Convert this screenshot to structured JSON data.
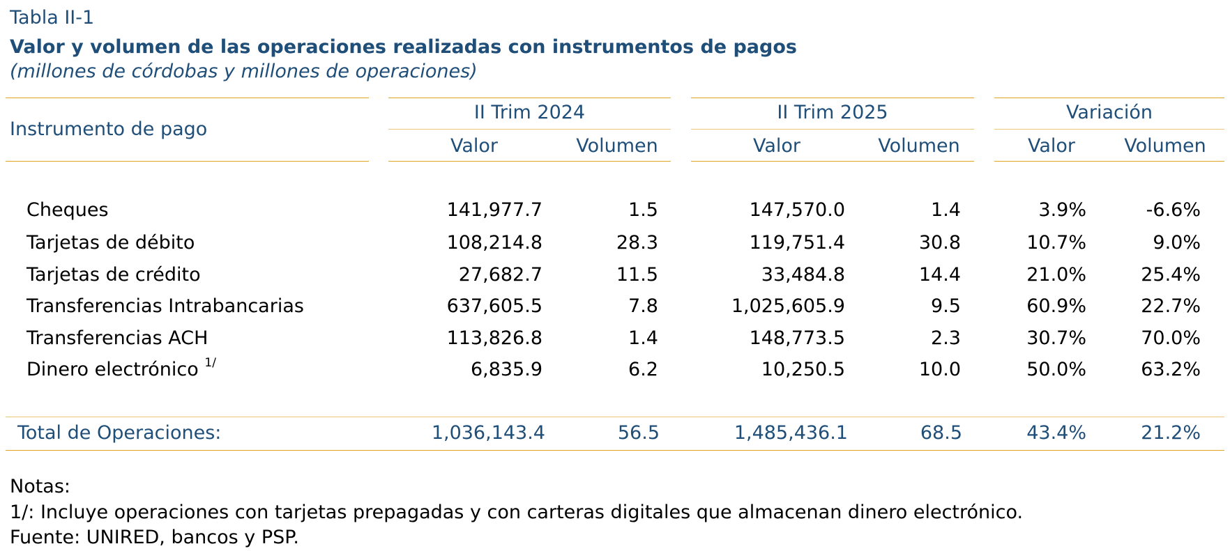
{
  "table_label": "Tabla II-1",
  "title": "Valor y volumen de las operaciones realizadas con instrumentos de pagos",
  "subtitle": "(millones de córdobas y millones de operaciones)",
  "header": {
    "instrument": "Instrumento de pago",
    "groups": [
      "II Trim 2024",
      "II Trim 2025",
      "Variación"
    ],
    "valor": "Valor",
    "volumen": "Volumen"
  },
  "rows": [
    {
      "name": "Cheques",
      "note": "",
      "v24": "141,977.7",
      "n24": "1.5",
      "v25": "147,570.0",
      "n25": "1.4",
      "vv": "3.9%",
      "vn": "-6.6%"
    },
    {
      "name": "Tarjetas de débito",
      "note": "",
      "v24": "108,214.8",
      "n24": "28.3",
      "v25": "119,751.4",
      "n25": "30.8",
      "vv": "10.7%",
      "vn": "9.0%"
    },
    {
      "name": "Tarjetas de crédito",
      "note": "",
      "v24": "27,682.7",
      "n24": "11.5",
      "v25": "33,484.8",
      "n25": "14.4",
      "vv": "21.0%",
      "vn": "25.4%"
    },
    {
      "name": "Transferencias Intrabancarias",
      "note": "",
      "v24": "637,605.5",
      "n24": "7.8",
      "v25": "1,025,605.9",
      "n25": "9.5",
      "vv": "60.9%",
      "vn": "22.7%"
    },
    {
      "name": "Transferencias ACH",
      "note": "",
      "v24": "113,826.8",
      "n24": "1.4",
      "v25": "148,773.5",
      "n25": "2.3",
      "vv": "30.7%",
      "vn": "70.0%"
    },
    {
      "name": "Dinero electrónico",
      "note": "1/",
      "v24": "6,835.9",
      "n24": "6.2",
      "v25": "10,250.5",
      "n25": "10.0",
      "vv": "50.0%",
      "vn": "63.2%"
    }
  ],
  "total": {
    "name": "Total de Operaciones:",
    "v24": "1,036,143.4",
    "n24": "56.5",
    "v25": "1,485,436.1",
    "n25": "68.5",
    "vv": "43.4%",
    "vn": "21.2%"
  },
  "notes": {
    "heading": "Notas:",
    "note1": "1/: Incluye operaciones con tarjetas prepagadas y con carteras digitales que almacenan dinero electrónico.",
    "source": "Fuente: UNIRED, bancos y PSP."
  },
  "colors": {
    "accent_blue": "#1f4e79",
    "rule_gold": "#e0a422"
  }
}
